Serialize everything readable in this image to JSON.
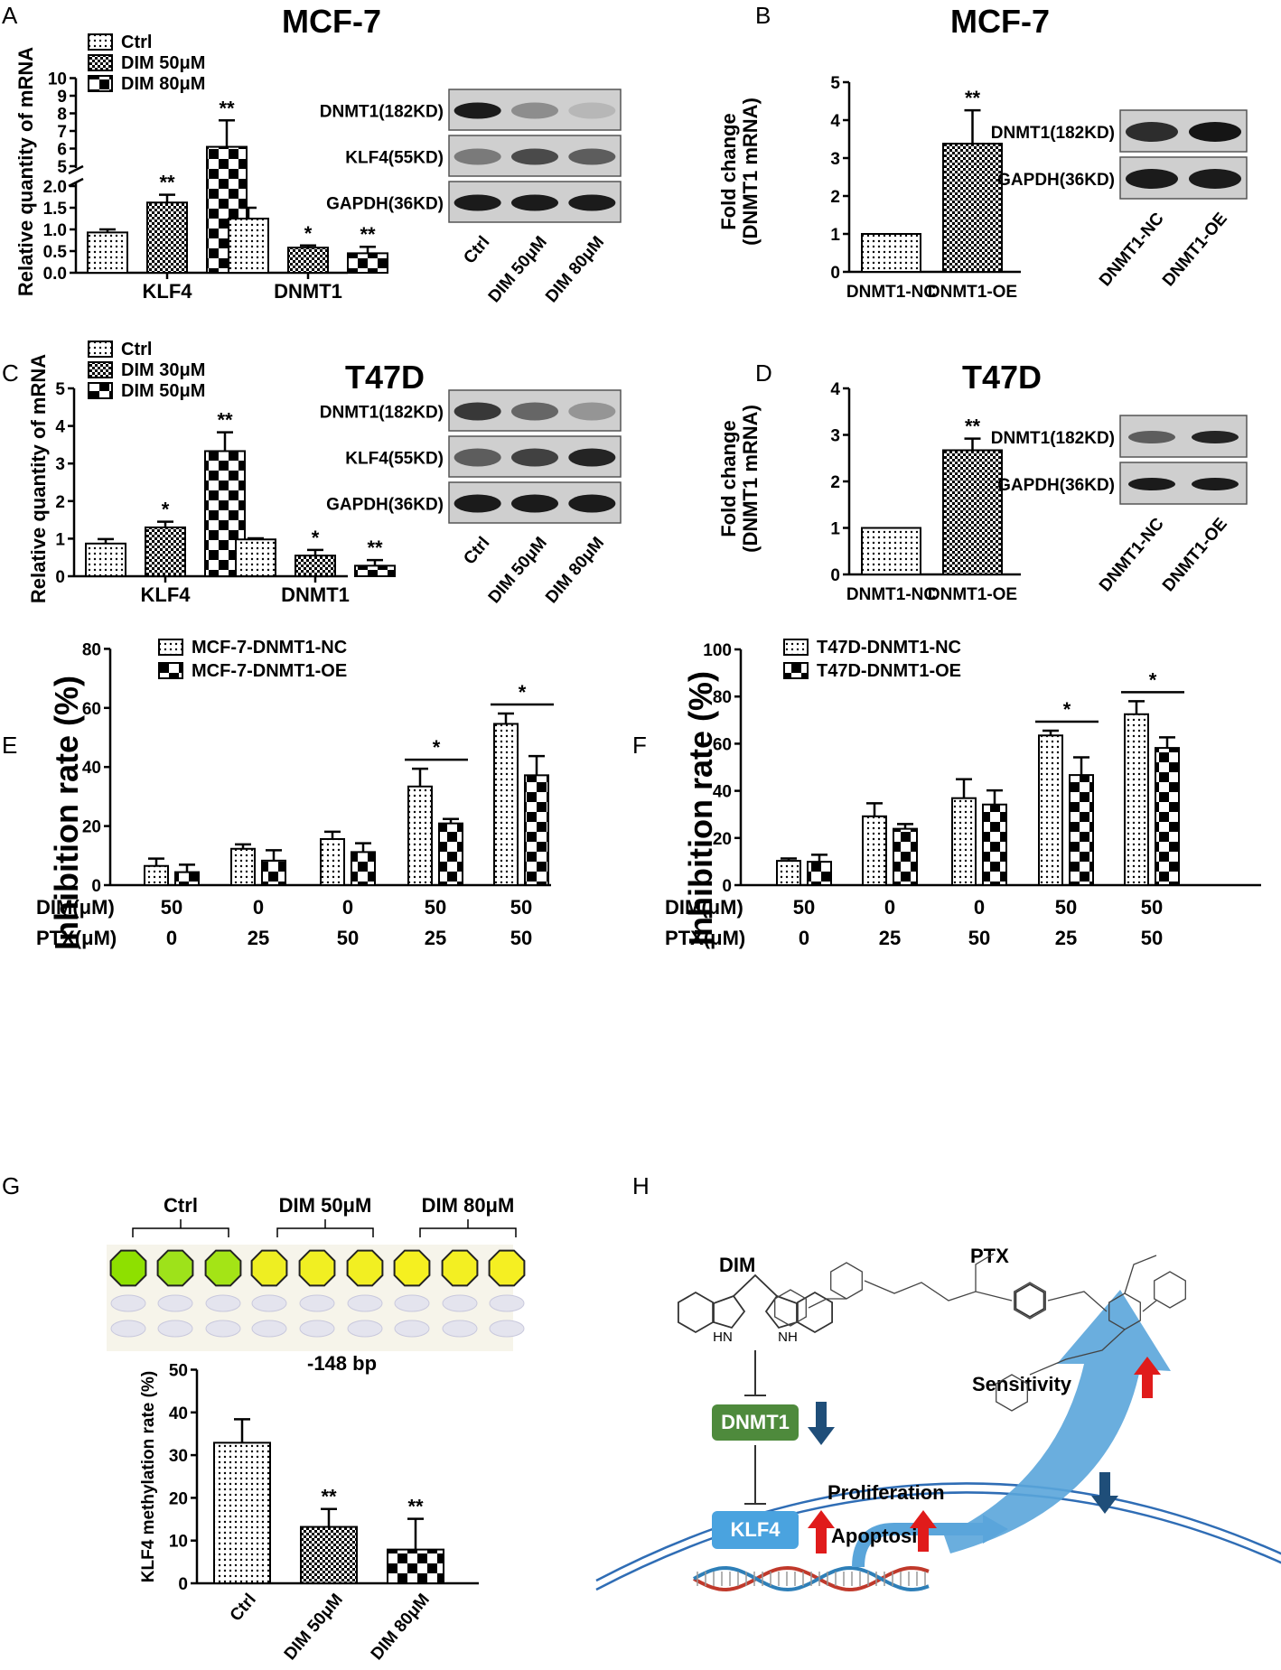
{
  "panel_labels": {
    "A": "A",
    "B": "B",
    "C": "C",
    "D": "D",
    "E": "E",
    "F": "F",
    "G": "G",
    "H": "H"
  },
  "titles": {
    "mcf7_a": "MCF-7",
    "mcf7_b": "MCF-7",
    "t47d_c": "T47D",
    "t47d_d": "T47D"
  },
  "colors": {
    "bar_edge": "#000000",
    "wb_band": "#111111",
    "wb_bg": "#cfcfcf",
    "dnmt1_box": "#4e8a3c",
    "klf4_box": "#4aa3df",
    "up_arrow": "#e01b1b",
    "down_arrow": "#1f4e79",
    "big_arrow": "#5aa5da",
    "membrane": "#2f6db5"
  },
  "blots": {
    "A": {
      "rows": [
        "DNMT1(182KD)",
        "KLF4(55KD)",
        "GAPDH(36KD)"
      ],
      "lanes": [
        "Ctrl",
        "DIM 50μM",
        "DIM 80μM"
      ]
    },
    "B": {
      "rows": [
        "DNMT1(182KD)",
        "GAPDH(36KD)"
      ],
      "lanes": [
        "DNMT1-NC",
        "DNMT1-OE"
      ]
    },
    "C": {
      "rows": [
        "DNMT1(182KD)",
        "KLF4(55KD)",
        "GAPDH(36KD)"
      ],
      "lanes": [
        "Ctrl",
        "DIM 50μM",
        "DIM 80μM"
      ]
    },
    "D": {
      "rows": [
        "DNMT1(182KD)",
        "GAPDH(36KD)"
      ],
      "lanes": [
        "DNMT1-NC",
        "DNMT1-OE"
      ]
    }
  },
  "methylation": {
    "groups": [
      "Ctrl",
      "DIM 50μM",
      "DIM 80μM"
    ],
    "position": "-148 bp"
  },
  "diagram": {
    "dim": "DIM",
    "ptx": "PTX",
    "dnmt1": "DNMT1",
    "klf4": "KLF4",
    "proliferation": "Proliferation",
    "apoptosis": "Apoptosis",
    "sensitivity": "Sensitivity"
  },
  "chart_data": [
    {
      "id": "A",
      "type": "bar",
      "ylabel": "Relative quantity of mRNA",
      "categories": [
        "KLF4",
        "DNMT1"
      ],
      "legend": [
        "Ctrl",
        "DIM 50μM",
        "DIM 80μM"
      ],
      "yticks_low": [
        "0.0",
        "0.5",
        "1.0",
        "1.5",
        "2.0"
      ],
      "yticks_high": [
        "5",
        "6",
        "7",
        "8",
        "9",
        "10"
      ],
      "series": [
        {
          "name": "Ctrl",
          "values": [
            0.93,
            1.25
          ],
          "err": [
            0.07,
            0.25
          ],
          "sig": [
            "",
            ""
          ]
        },
        {
          "name": "DIM 50μM",
          "values": [
            1.62,
            0.58
          ],
          "err": [
            0.18,
            0.05
          ],
          "sig": [
            "**",
            "*"
          ]
        },
        {
          "name": "DIM 80μM",
          "values": [
            6.1,
            0.45
          ],
          "err": [
            1.5,
            0.15
          ],
          "sig": [
            "**",
            "**"
          ]
        }
      ]
    },
    {
      "id": "B",
      "type": "bar",
      "ylabel": "Fold change\n(DNMT1 mRNA)",
      "categories": [
        "DNMT1-NC",
        "DNMT1-OE"
      ],
      "ylim": [
        0,
        5
      ],
      "yticks": [
        "0",
        "1",
        "2",
        "3",
        "4",
        "5"
      ],
      "values": [
        1.0,
        3.38
      ],
      "err": [
        0,
        0.88
      ],
      "sig": [
        "",
        "**"
      ]
    },
    {
      "id": "C",
      "type": "bar",
      "ylabel": "Relative quantity of mRNA",
      "categories": [
        "KLF4",
        "DNMT1"
      ],
      "legend": [
        "Ctrl",
        "DIM 30μM",
        "DIM 50μM"
      ],
      "ylim": [
        0,
        5
      ],
      "yticks": [
        "0",
        "1",
        "2",
        "3",
        "4",
        "5"
      ],
      "series": [
        {
          "name": "Ctrl",
          "values": [
            0.87,
            0.98
          ],
          "err": [
            0.12,
            0.03
          ],
          "sig": [
            "",
            ""
          ]
        },
        {
          "name": "DIM 30μM",
          "values": [
            1.3,
            0.55
          ],
          "err": [
            0.15,
            0.15
          ],
          "sig": [
            "*",
            "*"
          ]
        },
        {
          "name": "DIM 50μM",
          "values": [
            3.33,
            0.28
          ],
          "err": [
            0.5,
            0.15
          ],
          "sig": [
            "**",
            "**"
          ]
        }
      ]
    },
    {
      "id": "D",
      "type": "bar",
      "ylabel": "Fold change\n(DNMT1 mRNA)",
      "categories": [
        "DNMT1-NC",
        "DNMT1-OE"
      ],
      "ylim": [
        0,
        4
      ],
      "yticks": [
        "0",
        "1",
        "2",
        "3",
        "4"
      ],
      "values": [
        1.0,
        2.67
      ],
      "err": [
        0,
        0.25
      ],
      "sig": [
        "",
        "**"
      ]
    },
    {
      "id": "E",
      "type": "bar",
      "ylabel": "Inhibition rate (%)",
      "ylim": [
        0,
        80
      ],
      "yticks": [
        "0",
        "20",
        "40",
        "60",
        "80"
      ],
      "row_labels": [
        "DIM(μM)",
        "PTX(μM)"
      ],
      "dim": [
        "50",
        "0",
        "0",
        "50",
        "50"
      ],
      "ptx": [
        "0",
        "25",
        "50",
        "25",
        "50"
      ],
      "series": [
        {
          "name": "MCF-7-DNMT1-NC",
          "values": [
            6.5,
            12.3,
            15.6,
            33.4,
            54.6
          ],
          "err": [
            2.5,
            1.5,
            2.5,
            6,
            3.5
          ]
        },
        {
          "name": "MCF-7-DNMT1-OE",
          "values": [
            4.4,
            8.3,
            11.2,
            20.9,
            37.2
          ],
          "err": [
            2.5,
            3.5,
            3,
            1.5,
            6.5
          ]
        }
      ],
      "sig_pairs": [
        3,
        4
      ],
      "sig": "*"
    },
    {
      "id": "F",
      "type": "bar",
      "ylabel": "Inhibition rate (%)",
      "ylim": [
        0,
        100
      ],
      "yticks": [
        "0",
        "20",
        "40",
        "60",
        "80",
        "100"
      ],
      "row_labels": [
        "DIM(μM)",
        "PTX(μM)"
      ],
      "dim": [
        "50",
        "0",
        "0",
        "50",
        "50"
      ],
      "ptx": [
        "0",
        "25",
        "50",
        "25",
        "50"
      ],
      "series": [
        {
          "name": "T47D-DNMT1-NC",
          "values": [
            10.3,
            29.2,
            36.9,
            63.5,
            72.5
          ],
          "err": [
            1,
            5.5,
            8,
            2,
            5.5
          ]
        },
        {
          "name": "T47D-DNMT1-OE",
          "values": [
            9.9,
            23.9,
            34.2,
            46.7,
            58.2
          ],
          "err": [
            3,
            2,
            6,
            7.5,
            4.5
          ]
        }
      ],
      "sig_pairs": [
        3,
        4
      ],
      "sig": "*"
    },
    {
      "id": "G",
      "type": "bar",
      "ylabel": "KLF4 methylation rate (%)",
      "ylim": [
        0,
        50
      ],
      "yticks": [
        "0",
        "10",
        "20",
        "30",
        "40",
        "50"
      ],
      "categories": [
        "Ctrl",
        "DIM 50μM",
        "DIM 80μM"
      ],
      "values": [
        32.9,
        13.2,
        7.9
      ],
      "err": [
        5.5,
        4.2,
        7.2
      ],
      "sig": [
        "",
        "**",
        "**"
      ]
    }
  ]
}
